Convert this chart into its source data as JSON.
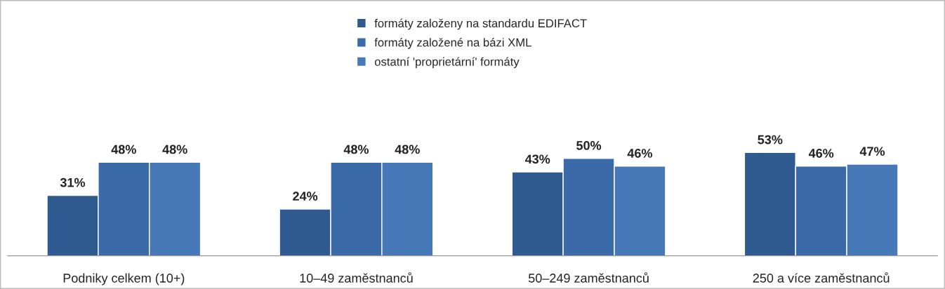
{
  "chart_data": {
    "type": "bar",
    "categories": [
      "Podniky celkem (10+)",
      "10–49 zaměstnanců",
      "50–249 zaměstnanců",
      "250 a více zaměstnanců"
    ],
    "series": [
      {
        "name": "formáty založeny na standardu EDIFACT",
        "color": "#2f5a8f",
        "values": [
          31,
          24,
          43,
          53
        ],
        "value_labels": [
          "31%",
          "24%",
          "43%",
          "53%"
        ]
      },
      {
        "name": "formáty založené na bázi XML",
        "color": "#3a6aa8",
        "values": [
          48,
          48,
          50,
          46
        ],
        "value_labels": [
          "48%",
          "48%",
          "50%",
          "46%"
        ]
      },
      {
        "name": "ostatní 'proprietární' formáty",
        "color": "#4778b8",
        "values": [
          48,
          48,
          46,
          47
        ],
        "value_labels": [
          "48%",
          "48%",
          "46%",
          "47%"
        ]
      }
    ],
    "legend": "top",
    "grid": false
  }
}
